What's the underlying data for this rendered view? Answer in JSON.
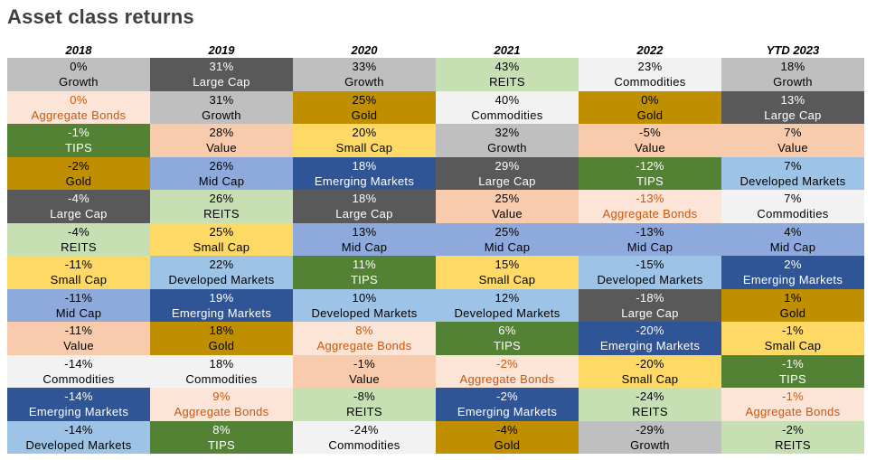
{
  "title": "Asset class returns",
  "chart_data": {
    "type": "table",
    "title": "Asset class returns",
    "columns": [
      "2018",
      "2019",
      "2020",
      "2021",
      "2022",
      "YTD 2023"
    ],
    "rows": [
      [
        {
          "v": "0%",
          "n": "Growth"
        },
        {
          "v": "31%",
          "n": "Large Cap"
        },
        {
          "v": "33%",
          "n": "Growth"
        },
        {
          "v": "43%",
          "n": "REITS"
        },
        {
          "v": "23%",
          "n": "Commodities"
        },
        {
          "v": "18%",
          "n": "Growth"
        }
      ],
      [
        {
          "v": "0%",
          "n": "Aggregate Bonds"
        },
        {
          "v": "31%",
          "n": "Growth"
        },
        {
          "v": "25%",
          "n": "Gold"
        },
        {
          "v": "40%",
          "n": "Commodities"
        },
        {
          "v": "0%",
          "n": "Gold"
        },
        {
          "v": "13%",
          "n": "Large Cap"
        }
      ],
      [
        {
          "v": "-1%",
          "n": "TIPS"
        },
        {
          "v": "28%",
          "n": "Value"
        },
        {
          "v": "20%",
          "n": "Small Cap"
        },
        {
          "v": "32%",
          "n": "Growth"
        },
        {
          "v": "-5%",
          "n": "Value"
        },
        {
          "v": "7%",
          "n": "Value"
        }
      ],
      [
        {
          "v": "-2%",
          "n": "Gold"
        },
        {
          "v": "26%",
          "n": "Mid Cap"
        },
        {
          "v": "18%",
          "n": "Emerging Markets"
        },
        {
          "v": "29%",
          "n": "Large Cap"
        },
        {
          "v": "-12%",
          "n": "TIPS"
        },
        {
          "v": "7%",
          "n": "Developed Markets"
        }
      ],
      [
        {
          "v": "-4%",
          "n": "Large Cap"
        },
        {
          "v": "26%",
          "n": "REITS"
        },
        {
          "v": "18%",
          "n": "Large Cap"
        },
        {
          "v": "25%",
          "n": "Value"
        },
        {
          "v": "-13%",
          "n": "Aggregate Bonds"
        },
        {
          "v": "7%",
          "n": "Commodities"
        }
      ],
      [
        {
          "v": "-4%",
          "n": "REITS"
        },
        {
          "v": "25%",
          "n": "Small Cap"
        },
        {
          "v": "13%",
          "n": "Mid Cap"
        },
        {
          "v": "25%",
          "n": "Mid Cap"
        },
        {
          "v": "-13%",
          "n": "Mid Cap"
        },
        {
          "v": "4%",
          "n": "Mid Cap"
        }
      ],
      [
        {
          "v": "-11%",
          "n": "Small Cap"
        },
        {
          "v": "22%",
          "n": "Developed Markets"
        },
        {
          "v": "11%",
          "n": "TIPS"
        },
        {
          "v": "15%",
          "n": "Small Cap"
        },
        {
          "v": "-15%",
          "n": "Developed Markets"
        },
        {
          "v": "2%",
          "n": "Emerging Markets"
        }
      ],
      [
        {
          "v": "-11%",
          "n": "Mid Cap"
        },
        {
          "v": "19%",
          "n": "Emerging Markets"
        },
        {
          "v": "10%",
          "n": "Developed Markets"
        },
        {
          "v": "12%",
          "n": "Developed Markets"
        },
        {
          "v": "-18%",
          "n": "Large Cap"
        },
        {
          "v": "1%",
          "n": "Gold"
        }
      ],
      [
        {
          "v": "-11%",
          "n": "Value"
        },
        {
          "v": "18%",
          "n": "Gold"
        },
        {
          "v": "8%",
          "n": "Aggregate Bonds"
        },
        {
          "v": "6%",
          "n": "TIPS"
        },
        {
          "v": "-20%",
          "n": "Emerging Markets"
        },
        {
          "v": "-1%",
          "n": "Small Cap"
        }
      ],
      [
        {
          "v": "-14%",
          "n": "Commodities"
        },
        {
          "v": "18%",
          "n": "Commodities"
        },
        {
          "v": "-1%",
          "n": "Value"
        },
        {
          "v": "-2%",
          "n": "Aggregate Bonds"
        },
        {
          "v": "-20%",
          "n": "Small Cap"
        },
        {
          "v": "-1%",
          "n": "TIPS"
        }
      ],
      [
        {
          "v": "-14%",
          "n": "Emerging Markets"
        },
        {
          "v": "9%",
          "n": "Aggregate Bonds"
        },
        {
          "v": "-8%",
          "n": "REITS"
        },
        {
          "v": "-2%",
          "n": "Emerging Markets"
        },
        {
          "v": "-24%",
          "n": "REITS"
        },
        {
          "v": "-1%",
          "n": "Aggregate Bonds"
        }
      ],
      [
        {
          "v": "-14%",
          "n": "Developed Markets"
        },
        {
          "v": "8%",
          "n": "TIPS"
        },
        {
          "v": "-24%",
          "n": "Commodities"
        },
        {
          "v": "-4%",
          "n": "Gold"
        },
        {
          "v": "-29%",
          "n": "Growth"
        },
        {
          "v": "-2%",
          "n": "REITS"
        }
      ]
    ],
    "asset_colors": {
      "Growth": {
        "bg": "#bfbfbf",
        "fg": "#000000"
      },
      "Large Cap": {
        "bg": "#595959",
        "fg": "#ffffff"
      },
      "REITS": {
        "bg": "#c6e0b4",
        "fg": "#000000"
      },
      "Commodities": {
        "bg": "#f2f2f2",
        "fg": "#000000"
      },
      "Aggregate Bonds": {
        "bg": "#fce4d6",
        "fg": "#c65911"
      },
      "Gold": {
        "bg": "#bf8f00",
        "fg": "#000000"
      },
      "TIPS": {
        "bg": "#548235",
        "fg": "#ffffff"
      },
      "Value": {
        "bg": "#f8cbad",
        "fg": "#000000"
      },
      "Small Cap": {
        "bg": "#ffd966",
        "fg": "#000000"
      },
      "Mid Cap": {
        "bg": "#8ea9db",
        "fg": "#000000"
      },
      "Emerging Markets": {
        "bg": "#2f5597",
        "fg": "#ffffff"
      },
      "Developed Markets": {
        "bg": "#9dc3e6",
        "fg": "#000000"
      }
    }
  }
}
